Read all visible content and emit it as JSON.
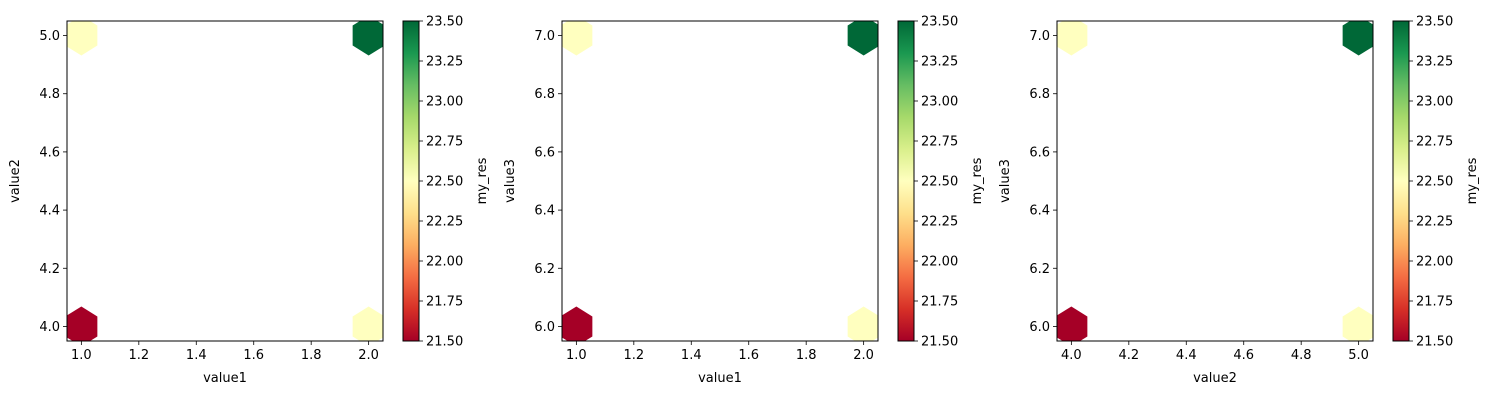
{
  "colormap": {
    "name": "RdYlGn",
    "stops": [
      "#a50026",
      "#d73027",
      "#f46d43",
      "#fdae61",
      "#fee08b",
      "#ffffbf",
      "#d9ef8b",
      "#a6d96a",
      "#66bd63",
      "#1a9850",
      "#006837"
    ]
  },
  "chart_data": [
    {
      "type": "hexbin",
      "xlabel": "value1",
      "ylabel": "value2",
      "xlim": [
        0.95,
        2.05
      ],
      "ylim": [
        3.95,
        5.05
      ],
      "xticks": [
        "1.0",
        "1.2",
        "1.4",
        "1.6",
        "1.8",
        "2.0"
      ],
      "yticks": [
        "4.0",
        "4.2",
        "4.4",
        "4.6",
        "4.8",
        "5.0"
      ],
      "points": [
        {
          "x": 1.0,
          "y": 4.0,
          "value": 21.5
        },
        {
          "x": 2.0,
          "y": 4.0,
          "value": 22.5
        },
        {
          "x": 1.0,
          "y": 5.0,
          "value": 22.5
        },
        {
          "x": 2.0,
          "y": 5.0,
          "value": 23.5
        }
      ],
      "colorbar": {
        "label": "my_res",
        "range": [
          21.5,
          23.5
        ],
        "ticks": [
          "21.50",
          "21.75",
          "22.00",
          "22.25",
          "22.50",
          "22.75",
          "23.00",
          "23.25",
          "23.50"
        ]
      }
    },
    {
      "type": "hexbin",
      "xlabel": "value1",
      "ylabel": "value3",
      "xlim": [
        0.95,
        2.05
      ],
      "ylim": [
        5.95,
        7.05
      ],
      "xticks": [
        "1.0",
        "1.2",
        "1.4",
        "1.6",
        "1.8",
        "2.0"
      ],
      "yticks": [
        "6.0",
        "6.2",
        "6.4",
        "6.6",
        "6.8",
        "7.0"
      ],
      "points": [
        {
          "x": 1.0,
          "y": 6.0,
          "value": 21.5
        },
        {
          "x": 2.0,
          "y": 6.0,
          "value": 22.5
        },
        {
          "x": 1.0,
          "y": 7.0,
          "value": 22.5
        },
        {
          "x": 2.0,
          "y": 7.0,
          "value": 23.5
        }
      ],
      "colorbar": {
        "label": "my_res",
        "range": [
          21.5,
          23.5
        ],
        "ticks": [
          "21.50",
          "21.75",
          "22.00",
          "22.25",
          "22.50",
          "22.75",
          "23.00",
          "23.25",
          "23.50"
        ]
      }
    },
    {
      "type": "hexbin",
      "xlabel": "value2",
      "ylabel": "value3",
      "xlim": [
        3.95,
        5.05
      ],
      "ylim": [
        5.95,
        7.05
      ],
      "xticks": [
        "4.0",
        "4.2",
        "4.4",
        "4.6",
        "4.8",
        "5.0"
      ],
      "yticks": [
        "6.0",
        "6.2",
        "6.4",
        "6.6",
        "6.8",
        "7.0"
      ],
      "points": [
        {
          "x": 4.0,
          "y": 6.0,
          "value": 21.5
        },
        {
          "x": 5.0,
          "y": 6.0,
          "value": 22.5
        },
        {
          "x": 4.0,
          "y": 7.0,
          "value": 22.5
        },
        {
          "x": 5.0,
          "y": 7.0,
          "value": 23.5
        }
      ],
      "colorbar": {
        "label": "my_res",
        "range": [
          21.5,
          23.5
        ],
        "ticks": [
          "21.50",
          "21.75",
          "22.00",
          "22.25",
          "22.50",
          "22.75",
          "23.00",
          "23.25",
          "23.50"
        ]
      }
    }
  ]
}
